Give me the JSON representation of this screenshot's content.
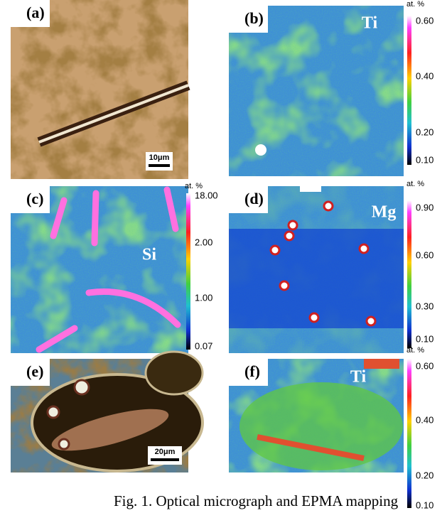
{
  "panels": [
    {
      "label": "(a)",
      "scale_bar": "10μm"
    },
    {
      "label": "(b)",
      "element": "Ti",
      "colorbar": {
        "unit": "at. %",
        "ticks": [
          "0.60",
          "0.40",
          "0.20",
          "0.10"
        ]
      }
    },
    {
      "label": "(c)",
      "element": "Si",
      "colorbar": {
        "unit": "at. %",
        "ticks": [
          "18.00",
          "2.00",
          "1.00",
          "0.07"
        ]
      }
    },
    {
      "label": "(d)",
      "element": "Mg",
      "colorbar": {
        "unit": "at. %",
        "ticks": [
          "0.90",
          "0.60",
          "0.30",
          "0.10"
        ]
      }
    },
    {
      "label": "(e)",
      "scale_bar": "20μm"
    },
    {
      "label": "(f)",
      "element": "Ti",
      "colorbar": {
        "unit": "at. %",
        "ticks": [
          "0.60",
          "0.40",
          "0.20",
          "0.10"
        ]
      }
    }
  ],
  "caption": "Fig. 1. Optical micrograph and EPMA mapping"
}
